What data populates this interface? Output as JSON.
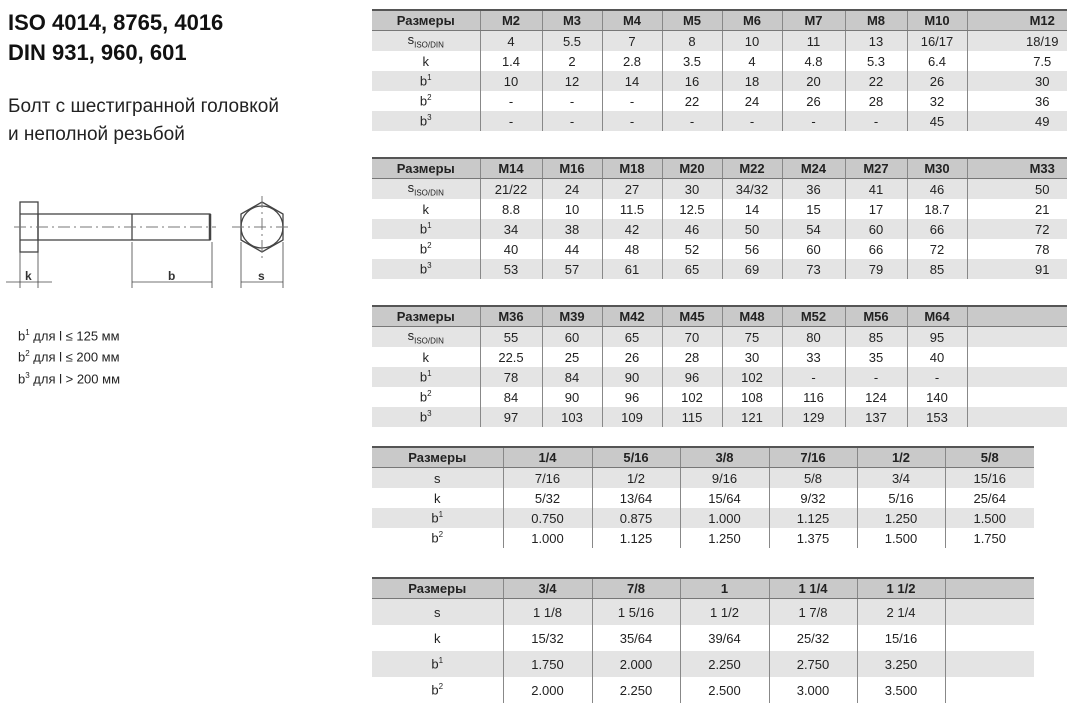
{
  "title_lines": [
    "ISO 4014, 8765, 4016",
    "DIN 931, 960, 601"
  ],
  "subtitle_lines": [
    "Болт с шестигранной головкой",
    "и неполной резьбой"
  ],
  "drawing": {
    "labels": [
      "k",
      "b",
      "s"
    ]
  },
  "notes": [
    {
      "sym": "b",
      "sup": "1",
      "text": " для l ≤ 125 мм"
    },
    {
      "sym": "b",
      "sup": "2",
      "text": " для l ≤ 200 мм"
    },
    {
      "sym": "b",
      "sup": "3",
      "text": " для l > 200 мм"
    }
  ],
  "row_labels": {
    "s_iso": {
      "main": "s",
      "sub": "ISO/DIN"
    },
    "s": "s",
    "k": "k",
    "b1": {
      "main": "b",
      "sup": "1"
    },
    "b2": {
      "main": "b",
      "sup": "2"
    },
    "b3": {
      "main": "b",
      "sup": "3"
    }
  },
  "tables": [
    {
      "header": [
        "Размеры",
        "M2",
        "M3",
        "M4",
        "M5",
        "M6",
        "M7",
        "M8",
        "M10",
        "M12"
      ],
      "rows": [
        [
          "s_iso",
          "4",
          "5.5",
          "7",
          "8",
          "10",
          "11",
          "13",
          "16/17",
          "18/19"
        ],
        [
          "k",
          "1.4",
          "2",
          "2.8",
          "3.5",
          "4",
          "4.8",
          "5.3",
          "6.4",
          "7.5"
        ],
        [
          "b1",
          "10",
          "12",
          "14",
          "16",
          "18",
          "20",
          "22",
          "26",
          "30"
        ],
        [
          "b2",
          "-",
          "-",
          "-",
          "22",
          "24",
          "26",
          "28",
          "32",
          "36"
        ],
        [
          "b3",
          "-",
          "-",
          "-",
          "-",
          "-",
          "-",
          "-",
          "45",
          "49"
        ]
      ]
    },
    {
      "header": [
        "Размеры",
        "M14",
        "M16",
        "M18",
        "M20",
        "M22",
        "M24",
        "M27",
        "M30",
        "M33"
      ],
      "rows": [
        [
          "s_iso",
          "21/22",
          "24",
          "27",
          "30",
          "34/32",
          "36",
          "41",
          "46",
          "50"
        ],
        [
          "k",
          "8.8",
          "10",
          "11.5",
          "12.5",
          "14",
          "15",
          "17",
          "18.7",
          "21"
        ],
        [
          "b1",
          "34",
          "38",
          "42",
          "46",
          "50",
          "54",
          "60",
          "66",
          "72"
        ],
        [
          "b2",
          "40",
          "44",
          "48",
          "52",
          "56",
          "60",
          "66",
          "72",
          "78"
        ],
        [
          "b3",
          "53",
          "57",
          "61",
          "65",
          "69",
          "73",
          "79",
          "85",
          "91"
        ]
      ]
    },
    {
      "header": [
        "Размеры",
        "M36",
        "M39",
        "M42",
        "M45",
        "M48",
        "M52",
        "M56",
        "M64",
        ""
      ],
      "rows": [
        [
          "s_iso",
          "55",
          "60",
          "65",
          "70",
          "75",
          "80",
          "85",
          "95",
          ""
        ],
        [
          "k",
          "22.5",
          "25",
          "26",
          "28",
          "30",
          "33",
          "35",
          "40",
          ""
        ],
        [
          "b1",
          "78",
          "84",
          "90",
          "96",
          "102",
          "-",
          "-",
          "-",
          ""
        ],
        [
          "b2",
          "84",
          "90",
          "96",
          "102",
          "108",
          "116",
          "124",
          "140",
          ""
        ],
        [
          "b3",
          "97",
          "103",
          "109",
          "115",
          "121",
          "129",
          "137",
          "153",
          ""
        ]
      ]
    },
    {
      "header": [
        "Размеры",
        "1/4",
        "5/16",
        "3/8",
        "7/16",
        "1/2",
        "5/8"
      ],
      "rows": [
        [
          "s",
          "7/16",
          "1/2",
          "9/16",
          "5/8",
          "3/4",
          "15/16"
        ],
        [
          "k",
          "5/32",
          "13/64",
          "15/64",
          "9/32",
          "5/16",
          "25/64"
        ],
        [
          "b1",
          "0.750",
          "0.875",
          "1.000",
          "1.125",
          "1.250",
          "1.500"
        ],
        [
          "b2",
          "1.000",
          "1.125",
          "1.250",
          "1.375",
          "1.500",
          "1.750"
        ]
      ]
    },
    {
      "header": [
        "Размеры",
        "3/4",
        "7/8",
        "1",
        "1 1/4",
        "1 1/2",
        ""
      ],
      "rows": [
        [
          "s",
          "1 1/8",
          "1 5/16",
          "1 1/2",
          "1 7/8",
          "2 1/4",
          ""
        ],
        [
          "k",
          "15/32",
          "35/64",
          "39/64",
          "25/32",
          "15/16",
          ""
        ],
        [
          "b1",
          "1.750",
          "2.000",
          "2.250",
          "2.750",
          "3.250",
          ""
        ],
        [
          "b2",
          "2.000",
          "2.250",
          "2.500",
          "3.000",
          "3.500",
          ""
        ]
      ]
    }
  ]
}
